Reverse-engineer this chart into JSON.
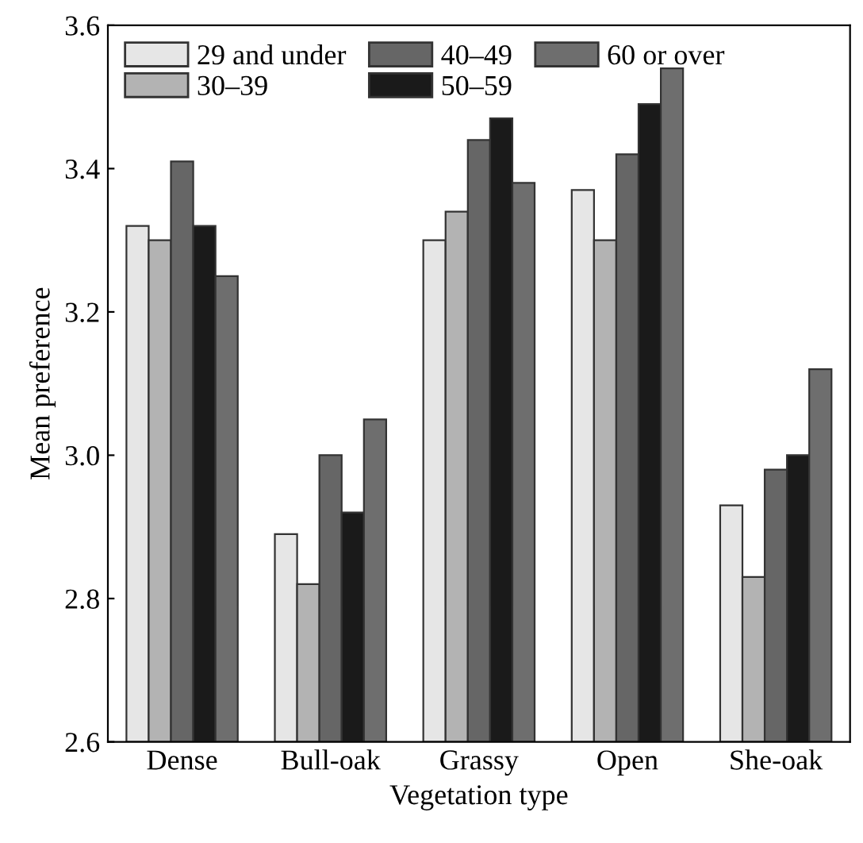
{
  "chart_data": {
    "type": "bar",
    "xlabel": "Vegetation type",
    "ylabel": "Mean preference",
    "categories": [
      "Dense",
      "Bull-oak",
      "Grassy",
      "Open",
      "She-oak"
    ],
    "series": [
      {
        "name": "29 and under",
        "color": "#e6e6e6",
        "values": [
          3.32,
          2.89,
          3.3,
          3.37,
          2.93
        ]
      },
      {
        "name": "30–39",
        "color": "#b3b3b3",
        "values": [
          3.3,
          2.82,
          3.34,
          3.3,
          2.83
        ]
      },
      {
        "name": "40–49",
        "color": "#666666",
        "values": [
          3.41,
          3.0,
          3.44,
          3.42,
          2.98
        ]
      },
      {
        "name": "50–59",
        "color": "#1a1a1a",
        "values": [
          3.32,
          2.92,
          3.47,
          3.49,
          3.0
        ]
      },
      {
        "name": "60 or over",
        "color": "#6e6e6e",
        "values": [
          3.25,
          3.05,
          3.38,
          3.54,
          3.12
        ]
      }
    ],
    "ylim": [
      2.6,
      3.6
    ],
    "yticks": [
      {
        "value": 2.6,
        "label": "2.6"
      },
      {
        "value": 2.8,
        "label": "2.8"
      },
      {
        "value": 3.0,
        "label": "3.0"
      },
      {
        "value": 3.2,
        "label": "3.2"
      },
      {
        "value": 3.4,
        "label": "3.4"
      },
      {
        "value": 3.6,
        "label": "3.6"
      }
    ],
    "grid": false,
    "legend": "top left"
  }
}
